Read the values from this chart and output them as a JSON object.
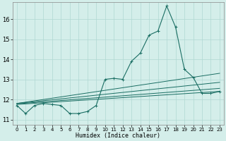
{
  "xlabel": "Humidex (Indice chaleur)",
  "bg_color": "#d4eeea",
  "grid_color": "#b0d8d2",
  "line_color": "#1a6e63",
  "xlim": [
    -0.5,
    23.5
  ],
  "ylim": [
    10.75,
    16.85
  ],
  "yticks": [
    11,
    12,
    13,
    14,
    15,
    16
  ],
  "xticks": [
    0,
    1,
    2,
    3,
    4,
    5,
    6,
    7,
    8,
    9,
    10,
    11,
    12,
    13,
    14,
    15,
    16,
    17,
    18,
    19,
    20,
    21,
    22,
    23
  ],
  "main_x": [
    0,
    1,
    2,
    3,
    4,
    5,
    6,
    7,
    8,
    9,
    10,
    11,
    12,
    13,
    14,
    15,
    16,
    17,
    18,
    19,
    20,
    21,
    22,
    23
  ],
  "main_y": [
    11.7,
    11.3,
    11.7,
    11.8,
    11.75,
    11.7,
    11.3,
    11.3,
    11.4,
    11.7,
    13.0,
    13.05,
    13.0,
    13.9,
    14.3,
    15.2,
    15.4,
    16.65,
    15.6,
    13.5,
    13.1,
    12.3,
    12.3,
    12.4
  ],
  "trends": [
    {
      "x": [
        0,
        23
      ],
      "y": [
        11.75,
        12.4
      ]
    },
    {
      "x": [
        0,
        23
      ],
      "y": [
        11.8,
        13.3
      ]
    },
    {
      "x": [
        0,
        23
      ],
      "y": [
        11.8,
        12.85
      ]
    },
    {
      "x": [
        0,
        23
      ],
      "y": [
        11.78,
        12.55
      ]
    }
  ]
}
